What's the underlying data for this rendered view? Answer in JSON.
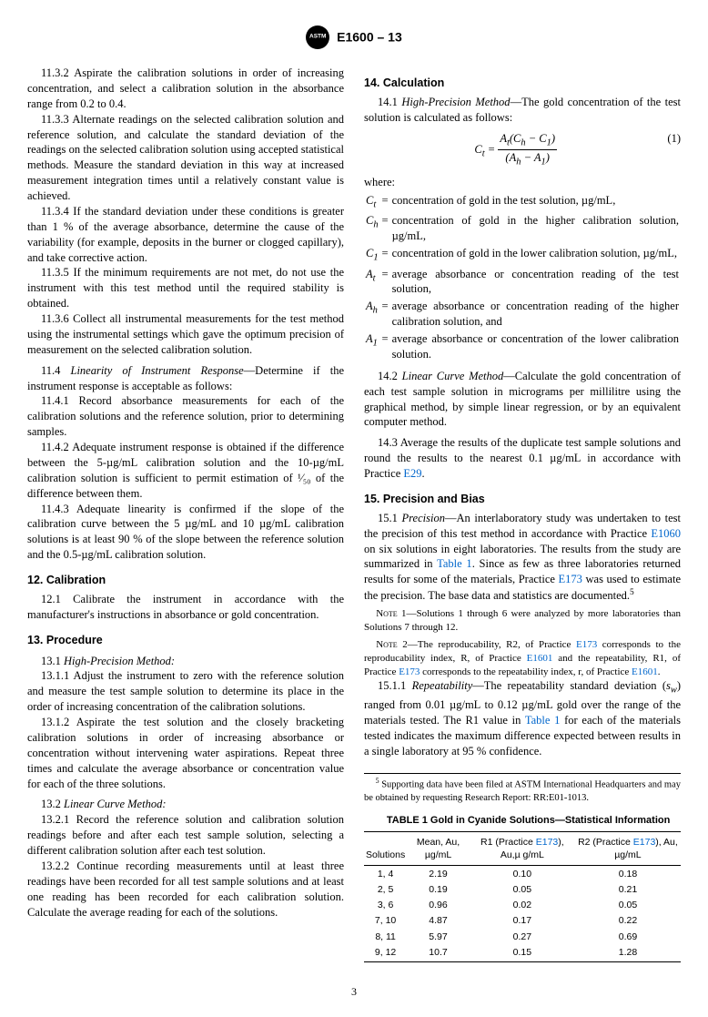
{
  "header": {
    "designation": "E1600 – 13"
  },
  "left": {
    "p_11_3_2": "11.3.2 Aspirate the calibration solutions in order of increasing concentration, and select a calibration solution in the absorbance range from 0.2 to 0.4.",
    "p_11_3_3": "11.3.3 Alternate readings on the selected calibration solution and reference solution, and calculate the standard deviation of the readings on the selected calibration solution using accepted statistical methods. Measure the standard deviation in this way at increased measurement integration times until a relatively constant value is achieved.",
    "p_11_3_4": "11.3.4 If the standard deviation under these conditions is greater than 1 % of the average absorbance, determine the cause of the variability (for example, deposits in the burner or clogged capillary), and take corrective action.",
    "p_11_3_5": "11.3.5 If the minimum requirements are not met, do not use the instrument with this test method until the required stability is obtained.",
    "p_11_3_6": "11.3.6 Collect all instrumental measurements for the test method using the instrumental settings which gave the optimum precision of measurement on the selected calibration solution.",
    "p_11_4_lead": "11.4 ",
    "p_11_4_title": "Linearity of Instrument Response",
    "p_11_4_tail": "—Determine if the instrument response is acceptable as follows:",
    "p_11_4_1": "11.4.1 Record absorbance measurements for each of the calibration solutions and the reference solution, prior to determining samples.",
    "p_11_4_2": "11.4.2 Adequate instrument response is obtained if the difference between the 5-µg/mL calibration solution and the 10-µg/mL calibration solution is sufficient to permit estimation of ¹⁄₅₀ of the difference between them.",
    "p_11_4_3": "11.4.3 Adequate linearity is confirmed if the slope of the calibration curve between the 5 µg/mL and 10 µg/mL calibration solutions is at least 90 % of the slope between the reference solution and the 0.5-µg/mL calibration solution.",
    "sec12": "12. Calibration",
    "p_12_1": "12.1 Calibrate the instrument in accordance with the manufacturer's instructions in absorbance or gold concentration.",
    "sec13": "13. Procedure",
    "p_13_1_lead": "13.1 ",
    "p_13_1_title": "High-Precision Method:",
    "p_13_1_1": "13.1.1 Adjust the instrument to zero with the reference solution and measure the test sample solution to determine its place in the order of increasing concentration of the calibration solutions.",
    "p_13_1_2": "13.1.2 Aspirate the test solution and the closely bracketing calibration solutions in order of increasing absorbance or concentration without intervening water aspirations. Repeat three times and calculate the average absorbance or concentration value for each of the three solutions.",
    "p_13_2_lead": "13.2 ",
    "p_13_2_title": "Linear Curve Method:",
    "p_13_2_1": "13.2.1 Record the reference solution and calibration solution readings before and after each test sample solution, selecting a different calibration solution after each test solution.",
    "p_13_2_2": "13.2.2 Continue recording measurements until at least three readings have been recorded for all test sample solutions and at least one reading has been recorded for each calibration solution. Calculate the average reading for each of the solutions."
  },
  "right": {
    "sec14": "14. Calculation",
    "p_14_1_lead": "14.1 ",
    "p_14_1_title": "High-Precision Method",
    "p_14_1_tail": "—The gold concentration of the test solution is calculated as follows:",
    "eq_num": "(1)",
    "where_label": "where:",
    "where": [
      {
        "sym": "C",
        "sub": "t",
        "def": "concentration of gold in the test solution, µg/mL,"
      },
      {
        "sym": "C",
        "sub": "h",
        "def": "concentration of gold in the higher calibration solution, µg/mL,"
      },
      {
        "sym": "C",
        "sub": "1",
        "def": "concentration of gold in the lower calibration solution, µg/mL,"
      },
      {
        "sym": "A",
        "sub": "t",
        "def": "average absorbance or concentration reading of the test solution,"
      },
      {
        "sym": "A",
        "sub": "h",
        "def": "average absorbance or concentration reading of the higher calibration solution, and"
      },
      {
        "sym": "A",
        "sub": "1",
        "def": "average absorbance or concentration of the lower calibration solution."
      }
    ],
    "p_14_2_lead": "14.2 ",
    "p_14_2_title": "Linear Curve Method",
    "p_14_2_tail": "—Calculate the gold concentration of each test sample solution in micrograms per millilitre using the graphical method, by simple linear regression, or by an equivalent computer method.",
    "p_14_3_a": "14.3 Average the results of the duplicate test sample solutions and round the results to the nearest 0.1 µg/mL in accordance with Practice ",
    "p_14_3_ref": "E29",
    "p_14_3_b": ".",
    "sec15": "15. Precision and Bias",
    "p_15_1_lead": "15.1 ",
    "p_15_1_title": "Precision",
    "p_15_1_a": "—An interlaboratory study was undertaken to test the precision of this test method in accordance with Practice ",
    "p_15_1_ref1": "E1060",
    "p_15_1_b": " on six solutions in eight laboratories. The results from the study are summarized in ",
    "p_15_1_ref2": "Table 1",
    "p_15_1_c": ". Since as few as three laboratories returned results for some of the materials, Practice ",
    "p_15_1_ref3": "E173",
    "p_15_1_d": " was used to estimate the precision. The base data and statistics are documented.",
    "p_15_1_sup": "5",
    "note1": "Solutions 1 through 6 were analyzed by more laboratories than Solutions 7 through 12.",
    "note2_a": "The reproducability, R2, of Practice ",
    "note2_b": " corresponds to the reproducability index, R, of Practice ",
    "note2_c": " and the repeatability, R1, of Practice ",
    "note2_d": " corresponds to the repeatability index, r, of Practice ",
    "note2_e": ".",
    "ref_E173": "E173",
    "ref_E1601": "E1601",
    "p_15_1_1_lead": "15.1.1 ",
    "p_15_1_1_title": "Repeatability",
    "p_15_1_1_a": "—The repeatability standard deviation (",
    "p_15_1_1_sym": "s",
    "p_15_1_1_sub": "w",
    "p_15_1_1_b": ") ranged from 0.01 µg/mL to 0.12 µg/mL gold over the range of the materials tested. The R1 value in ",
    "p_15_1_1_ref": "Table 1",
    "p_15_1_1_c": " for each of the materials tested indicates the maximum difference expected between results in a single laboratory at 95 % confidence.",
    "footnote_sup": "5",
    "footnote": " Supporting data have been filed at ASTM International Headquarters and may be obtained by requesting Research Report: RR:E01-1013.",
    "table_title": "TABLE 1 Gold in Cyanide Solutions—Statistical Information",
    "table_headers": {
      "c1": "Solutions",
      "c2": "Mean, Au, µg/mL",
      "c3a": "R1 (Practice ",
      "c3ref": "E173",
      "c3b": "), Au,µ g/mL",
      "c4a": "R2 (Practice ",
      "c4ref": "E173",
      "c4b": "), Au, µg/mL"
    },
    "table_rows": [
      [
        "1, 4",
        "2.19",
        "0.10",
        "0.18"
      ],
      [
        "2, 5",
        "0.19",
        "0.05",
        "0.21"
      ],
      [
        "3, 6",
        "0.96",
        "0.02",
        "0.05"
      ],
      [
        "7, 10",
        "4.87",
        "0.17",
        "0.22"
      ],
      [
        "8, 11",
        "5.97",
        "0.27",
        "0.69"
      ],
      [
        "9, 12",
        "10.7",
        "0.15",
        "1.28"
      ]
    ]
  },
  "pagenum": "3"
}
